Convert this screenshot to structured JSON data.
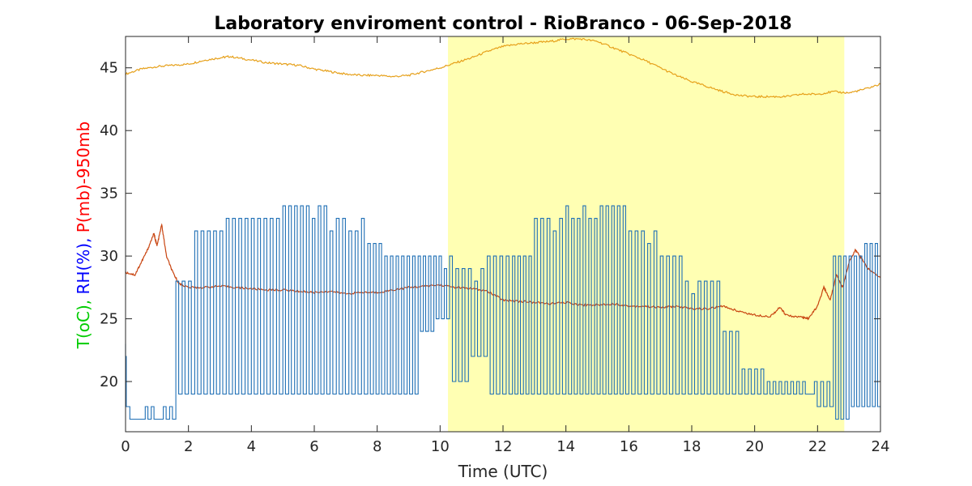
{
  "chart_data": {
    "type": "line",
    "title": "Laboratory enviroment control - RioBranco - 06-Sep-2018",
    "xlabel": "Time (UTC)",
    "ylabel_parts": [
      {
        "text": "T(oC),",
        "color": "#00cc00"
      },
      {
        "text": "RH(%),",
        "color": "#0000ff"
      },
      {
        "text": "P(mb)-950mb",
        "color": "#ff0000"
      }
    ],
    "xlim": [
      0,
      24
    ],
    "ylim": [
      16,
      47.5
    ],
    "xticks": [
      0,
      2,
      4,
      6,
      8,
      10,
      12,
      14,
      16,
      18,
      20,
      22,
      24
    ],
    "yticks": [
      20,
      25,
      30,
      35,
      40,
      45
    ],
    "grid": false,
    "highlight": {
      "x0": 10.25,
      "x1": 22.85,
      "color": "#ffffb3"
    },
    "series": [
      {
        "color": "#e6a01a",
        "points": [
          [
            0,
            44.5
          ],
          [
            0.5,
            44.9
          ],
          [
            1,
            45.1
          ],
          [
            1.5,
            45.2
          ],
          [
            2,
            45.3
          ],
          [
            2.5,
            45.6
          ],
          [
            3,
            45.8
          ],
          [
            3.3,
            45.9
          ],
          [
            3.8,
            45.7
          ],
          [
            4.5,
            45.4
          ],
          [
            5,
            45.3
          ],
          [
            5.5,
            45.2
          ],
          [
            6,
            44.9
          ],
          [
            6.5,
            44.7
          ],
          [
            7,
            44.5
          ],
          [
            7.5,
            44.4
          ],
          [
            8,
            44.4
          ],
          [
            8.5,
            44.3
          ],
          [
            9,
            44.4
          ],
          [
            9.5,
            44.7
          ],
          [
            10,
            45.0
          ],
          [
            10.5,
            45.4
          ],
          [
            11,
            45.8
          ],
          [
            11.5,
            46.3
          ],
          [
            12,
            46.7
          ],
          [
            12.5,
            46.9
          ],
          [
            13,
            47.0
          ],
          [
            13.5,
            47.1
          ],
          [
            14,
            47.3
          ],
          [
            14.5,
            47.3
          ],
          [
            15,
            47.1
          ],
          [
            15.5,
            46.6
          ],
          [
            16,
            46.1
          ],
          [
            16.5,
            45.6
          ],
          [
            17,
            45.0
          ],
          [
            17.5,
            44.4
          ],
          [
            18,
            43.9
          ],
          [
            18.5,
            43.5
          ],
          [
            19,
            43.1
          ],
          [
            19.5,
            42.8
          ],
          [
            20,
            42.7
          ],
          [
            20.5,
            42.7
          ],
          [
            21,
            42.7
          ],
          [
            21.5,
            42.9
          ],
          [
            22,
            42.9
          ],
          [
            22.5,
            43.1
          ],
          [
            23,
            43.0
          ],
          [
            23.5,
            43.3
          ],
          [
            24,
            43.7
          ]
        ]
      },
      {
        "color": "#c84410",
        "points": [
          [
            0,
            28.7
          ],
          [
            0.3,
            28.5
          ],
          [
            0.5,
            29.5
          ],
          [
            0.7,
            30.5
          ],
          [
            0.9,
            31.8
          ],
          [
            1.0,
            30.8
          ],
          [
            1.15,
            32.5
          ],
          [
            1.3,
            30.0
          ],
          [
            1.5,
            28.7
          ],
          [
            1.7,
            27.8
          ],
          [
            2,
            27.5
          ],
          [
            2.5,
            27.5
          ],
          [
            3,
            27.6
          ],
          [
            3.5,
            27.5
          ],
          [
            4,
            27.4
          ],
          [
            4.5,
            27.3
          ],
          [
            5,
            27.3
          ],
          [
            5.5,
            27.2
          ],
          [
            6,
            27.1
          ],
          [
            6.5,
            27.2
          ],
          [
            7,
            27.0
          ],
          [
            7.5,
            27.1
          ],
          [
            8,
            27.1
          ],
          [
            8.5,
            27.3
          ],
          [
            9,
            27.5
          ],
          [
            9.5,
            27.6
          ],
          [
            10,
            27.7
          ],
          [
            10.5,
            27.5
          ],
          [
            11,
            27.4
          ],
          [
            11.5,
            27.2
          ],
          [
            12,
            26.5
          ],
          [
            12.5,
            26.4
          ],
          [
            13,
            26.3
          ],
          [
            13.5,
            26.2
          ],
          [
            14,
            26.3
          ],
          [
            14.5,
            26.1
          ],
          [
            15,
            26.1
          ],
          [
            15.5,
            26.2
          ],
          [
            16,
            26.0
          ],
          [
            16.5,
            26.0
          ],
          [
            17,
            25.9
          ],
          [
            17.5,
            26.0
          ],
          [
            18,
            25.8
          ],
          [
            18.5,
            25.8
          ],
          [
            19,
            26.0
          ],
          [
            19.5,
            25.6
          ],
          [
            20,
            25.3
          ],
          [
            20.5,
            25.2
          ],
          [
            20.8,
            25.9
          ],
          [
            21,
            25.3
          ],
          [
            21.5,
            25.1
          ],
          [
            21.7,
            25.0
          ],
          [
            22,
            26.0
          ],
          [
            22.2,
            27.5
          ],
          [
            22.4,
            26.5
          ],
          [
            22.6,
            28.5
          ],
          [
            22.8,
            27.5
          ],
          [
            23.0,
            29.5
          ],
          [
            23.2,
            30.5
          ],
          [
            23.4,
            29.8
          ],
          [
            23.6,
            29.0
          ],
          [
            24,
            28.3
          ]
        ]
      },
      {
        "color": "#1f6fb5",
        "segments": [
          {
            "x0": 0.0,
            "x1": 0.05,
            "low": 18,
            "high": 23
          },
          {
            "x0": 0.05,
            "x1": 1.2,
            "low": 17,
            "high": 18
          },
          {
            "x0": 1.2,
            "x1": 1.6,
            "low": 17,
            "high": 18
          },
          {
            "x0": 1.6,
            "x1": 2.2,
            "low": 19,
            "high": 28
          },
          {
            "x0": 2.2,
            "x1": 3.2,
            "low": 19,
            "high": 32
          },
          {
            "x0": 3.2,
            "x1": 5.0,
            "low": 19,
            "high": 33
          },
          {
            "x0": 5.0,
            "x1": 6.5,
            "low": 19,
            "high": 34
          },
          {
            "x0": 6.5,
            "x1": 7.7,
            "low": 19,
            "high": 33
          },
          {
            "x0": 7.7,
            "x1": 8.6,
            "low": 19,
            "high": 31
          },
          {
            "x0": 8.6,
            "x1": 9.3,
            "low": 19,
            "high": 30
          },
          {
            "x0": 9.3,
            "x1": 9.8,
            "low": 24,
            "high": 30
          },
          {
            "x0": 9.8,
            "x1": 10.3,
            "low": 25,
            "high": 30
          },
          {
            "x0": 10.3,
            "x1": 10.9,
            "low": 20,
            "high": 30
          },
          {
            "x0": 10.9,
            "x1": 11.5,
            "low": 22,
            "high": 29
          },
          {
            "x0": 11.5,
            "x1": 12.3,
            "low": 19,
            "high": 30
          },
          {
            "x0": 12.3,
            "x1": 13.0,
            "low": 19,
            "high": 30
          },
          {
            "x0": 13.0,
            "x1": 14.0,
            "low": 19,
            "high": 33
          },
          {
            "x0": 14.0,
            "x1": 16.0,
            "low": 19,
            "high": 34
          },
          {
            "x0": 16.0,
            "x1": 17.0,
            "low": 19,
            "high": 32
          },
          {
            "x0": 17.0,
            "x1": 17.8,
            "low": 19,
            "high": 30
          },
          {
            "x0": 17.8,
            "x1": 19.0,
            "low": 19,
            "high": 28
          },
          {
            "x0": 19.0,
            "x1": 19.6,
            "low": 19,
            "high": 24
          },
          {
            "x0": 19.6,
            "x1": 20.4,
            "low": 19,
            "high": 21
          },
          {
            "x0": 20.4,
            "x1": 21.9,
            "low": 19,
            "high": 20
          },
          {
            "x0": 21.9,
            "x1": 22.5,
            "low": 18,
            "high": 20
          },
          {
            "x0": 22.5,
            "x1": 23.0,
            "low": 17,
            "high": 30
          },
          {
            "x0": 23.0,
            "x1": 23.5,
            "low": 18,
            "high": 30
          },
          {
            "x0": 23.5,
            "x1": 24.0,
            "low": 18,
            "high": 31
          }
        ]
      }
    ]
  }
}
